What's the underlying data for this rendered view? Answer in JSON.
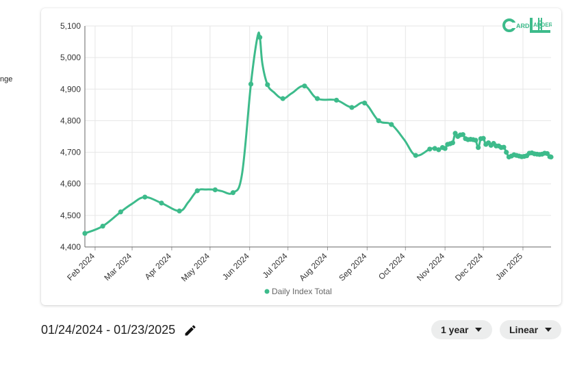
{
  "side_label": "nge",
  "logo": {
    "text": "ARDADDER",
    "letters": [
      "C",
      "L"
    ]
  },
  "date_range": "01/24/2024 - 01/23/2025",
  "controls": {
    "period": "1 year",
    "scale": "Linear"
  },
  "colors": {
    "series": "#3dbb8b",
    "grid": "#e6e6e6",
    "axis": "#333333"
  },
  "icons": {
    "edit": "pencil-icon",
    "dropdown": "chevron-down-icon"
  },
  "chart_data": {
    "type": "line",
    "xlabel": "",
    "ylabel": "",
    "ylim": [
      4400,
      5100
    ],
    "y_ticks": [
      4400,
      4500,
      4600,
      4700,
      4800,
      4900,
      5000,
      5100
    ],
    "y_tick_labels": [
      "4,400",
      "4,500",
      "4,600",
      "4,700",
      "4,800",
      "4,900",
      "5,000",
      "5,100"
    ],
    "x_range": [
      "2024-01-24",
      "2025-01-23"
    ],
    "x_ticks": [
      "2024-02-01",
      "2024-03-01",
      "2024-04-01",
      "2024-05-01",
      "2024-06-01",
      "2024-07-01",
      "2024-08-01",
      "2024-09-01",
      "2024-10-01",
      "2024-11-01",
      "2024-12-01",
      "2025-01-01"
    ],
    "x_tick_labels": [
      "Feb 2024",
      "Mar 2024",
      "Apr 2024",
      "May 2024",
      "Jun 2024",
      "Jul 2024",
      "Aug 2024",
      "Sep 2024",
      "Oct 2024",
      "Nov 2024",
      "Dec 2024",
      "Jan 2025"
    ],
    "grid": true,
    "legend": {
      "position": "bottom",
      "entries": [
        "Daily Index Total"
      ]
    },
    "series": [
      {
        "name": "Daily Index Total",
        "x": [
          "2024-01-24",
          "2024-02-07",
          "2024-02-21",
          "2024-03-01",
          "2024-03-11",
          "2024-03-24",
          "2024-04-07",
          "2024-04-14",
          "2024-04-21",
          "2024-04-28",
          "2024-05-05",
          "2024-05-10",
          "2024-05-19",
          "2024-05-26",
          "2024-06-02",
          "2024-06-07",
          "2024-06-09",
          "2024-06-11",
          "2024-06-15",
          "2024-06-20",
          "2024-06-27",
          "2024-07-04",
          "2024-07-14",
          "2024-07-24",
          "2024-08-08",
          "2024-08-20",
          "2024-08-30",
          "2024-09-10",
          "2024-09-20",
          "2024-09-30",
          "2024-10-09",
          "2024-10-20",
          "2024-10-24",
          "2024-10-27",
          "2024-10-30",
          "2024-11-01",
          "2024-11-03",
          "2024-11-05",
          "2024-11-07",
          "2024-11-09",
          "2024-11-11",
          "2024-11-13",
          "2024-11-15",
          "2024-11-17",
          "2024-11-19",
          "2024-11-21",
          "2024-11-23",
          "2024-11-25",
          "2024-11-27",
          "2024-11-29",
          "2024-12-01",
          "2024-12-03",
          "2024-12-05",
          "2024-12-07",
          "2024-12-09",
          "2024-12-11",
          "2024-12-13",
          "2024-12-15",
          "2024-12-17",
          "2024-12-19",
          "2024-12-21",
          "2024-12-23",
          "2024-12-25",
          "2024-12-27",
          "2024-12-29",
          "2024-12-31",
          "2025-01-02",
          "2025-01-04",
          "2025-01-06",
          "2025-01-08",
          "2025-01-10",
          "2025-01-12",
          "2025-01-14",
          "2025-01-16",
          "2025-01-18",
          "2025-01-20",
          "2025-01-22",
          "2025-01-23"
        ],
        "y": [
          4443,
          4466,
          4511,
          4537,
          4558,
          4539,
          4514,
          4542,
          4578,
          4582,
          4581,
          4577,
          4572,
          4630,
          4916,
          5063,
          5064,
          4980,
          4914,
          4890,
          4870,
          4887,
          4910,
          4870,
          4865,
          4842,
          4856,
          4800,
          4788,
          4740,
          4690,
          4710,
          4712,
          4708,
          4715,
          4712,
          4725,
          4727,
          4730,
          4760,
          4750,
          4755,
          4756,
          4743,
          4740,
          4741,
          4740,
          4738,
          4715,
          4743,
          4744,
          4725,
          4730,
          4722,
          4728,
          4720,
          4720,
          4715,
          4716,
          4700,
          4685,
          4688,
          4692,
          4690,
          4688,
          4686,
          4687,
          4689,
          4697,
          4698,
          4695,
          4694,
          4693,
          4694,
          4697,
          4696,
          4686,
          4685
        ]
      }
    ],
    "markers_x": [
      "2024-01-24",
      "2024-02-07",
      "2024-02-21",
      "2024-03-11",
      "2024-03-24",
      "2024-04-07",
      "2024-04-21",
      "2024-05-05",
      "2024-05-19",
      "2024-06-02",
      "2024-06-09",
      "2024-06-15",
      "2024-06-27",
      "2024-07-14",
      "2024-07-24",
      "2024-08-08",
      "2024-08-20",
      "2024-08-30",
      "2024-09-10",
      "2024-09-20",
      "2024-10-09",
      "2024-10-20",
      "2024-10-24",
      "2024-10-27",
      "2024-10-30",
      "2024-11-01",
      "2024-11-03",
      "2024-11-05",
      "2024-11-07",
      "2024-11-09",
      "2024-11-11",
      "2024-11-13",
      "2024-11-15",
      "2024-11-17",
      "2024-11-19",
      "2024-11-21",
      "2024-11-23",
      "2024-11-25",
      "2024-11-27",
      "2024-11-29",
      "2024-12-01",
      "2024-12-03",
      "2024-12-05",
      "2024-12-07",
      "2024-12-09",
      "2024-12-11",
      "2024-12-13",
      "2024-12-15",
      "2024-12-17",
      "2024-12-19",
      "2024-12-21",
      "2024-12-23",
      "2024-12-25",
      "2024-12-27",
      "2024-12-29",
      "2024-12-31",
      "2025-01-02",
      "2025-01-04",
      "2025-01-06",
      "2025-01-08",
      "2025-01-10",
      "2025-01-12",
      "2025-01-14",
      "2025-01-16",
      "2025-01-18",
      "2025-01-20",
      "2025-01-22",
      "2025-01-23"
    ]
  }
}
